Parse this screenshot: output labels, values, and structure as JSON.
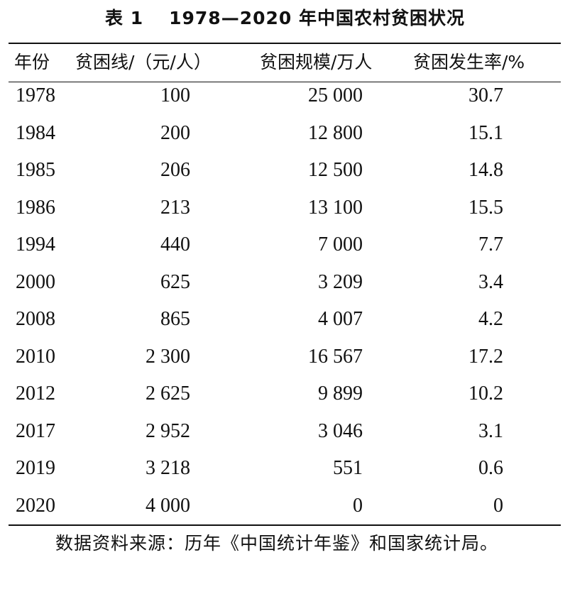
{
  "table": {
    "title_number": "表 1",
    "title_text": "1978—2020 年中国农村贫困状况",
    "headers": {
      "year": "年份",
      "poverty_line": "贫困线/（元/人）",
      "poverty_scale": "贫困规模/万人",
      "poverty_rate": "贫困发生率/%"
    },
    "rows": [
      {
        "year": "1978",
        "poverty_line": "100",
        "poverty_scale": "25 000",
        "poverty_rate": "30.7"
      },
      {
        "year": "1984",
        "poverty_line": "200",
        "poverty_scale": "12 800",
        "poverty_rate": "15.1"
      },
      {
        "year": "1985",
        "poverty_line": "206",
        "poverty_scale": "12 500",
        "poverty_rate": "14.8"
      },
      {
        "year": "1986",
        "poverty_line": "213",
        "poverty_scale": "13 100",
        "poverty_rate": "15.5"
      },
      {
        "year": "1994",
        "poverty_line": "440",
        "poverty_scale": "7 000",
        "poverty_rate": "7.7"
      },
      {
        "year": "2000",
        "poverty_line": "625",
        "poverty_scale": "3 209",
        "poverty_rate": "3.4"
      },
      {
        "year": "2008",
        "poverty_line": "865",
        "poverty_scale": "4 007",
        "poverty_rate": "4.2"
      },
      {
        "year": "2010",
        "poverty_line": "2 300",
        "poverty_scale": "16 567",
        "poverty_rate": "17.2"
      },
      {
        "year": "2012",
        "poverty_line": "2 625",
        "poverty_scale": "9 899",
        "poverty_rate": "10.2"
      },
      {
        "year": "2017",
        "poverty_line": "2 952",
        "poverty_scale": "3 046",
        "poverty_rate": "3.1"
      },
      {
        "year": "2019",
        "poverty_line": "3 218",
        "poverty_scale": "551",
        "poverty_rate": "0.6"
      },
      {
        "year": "2020",
        "poverty_line": "4 000",
        "poverty_scale": "0",
        "poverty_rate": "0"
      }
    ],
    "source_note": "数据资料来源：历年《中国统计年鉴》和国家统计局。"
  }
}
